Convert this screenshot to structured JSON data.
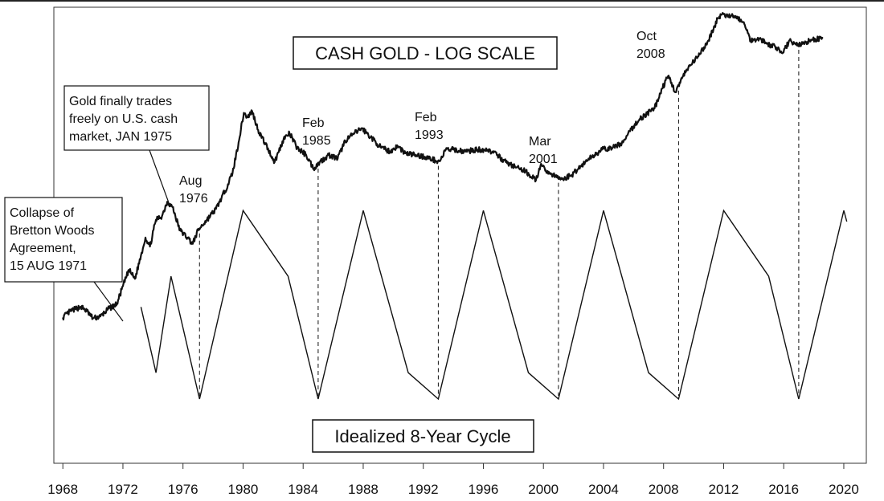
{
  "chart_data": {
    "type": "line",
    "title": "CASH GOLD - LOG SCALE",
    "cycle_label": "Idealized 8-Year Cycle",
    "x_ticks": [
      "1968",
      "1972",
      "1976",
      "1980",
      "1984",
      "1988",
      "1992",
      "1996",
      "2000",
      "2004",
      "2008",
      "2012",
      "2016",
      "2020"
    ],
    "xlim": [
      1967.4,
      2021.5
    ],
    "y_axis_printed": false,
    "series": [
      {
        "key": "gold_price",
        "note": "relative log level (unitless, chart has no y ticks)",
        "points": [
          [
            1968.0,
            0.155
          ],
          [
            1968.5,
            0.19
          ],
          [
            1969.2,
            0.215
          ],
          [
            1969.6,
            0.19
          ],
          [
            1970.0,
            0.15
          ],
          [
            1970.5,
            0.16
          ],
          [
            1971.0,
            0.2
          ],
          [
            1971.6,
            0.23
          ],
          [
            1972.0,
            0.33
          ],
          [
            1972.4,
            0.42
          ],
          [
            1972.8,
            0.37
          ],
          [
            1973.2,
            0.5
          ],
          [
            1973.5,
            0.6
          ],
          [
            1973.8,
            0.55
          ],
          [
            1974.2,
            0.7
          ],
          [
            1974.6,
            0.72
          ],
          [
            1974.95,
            0.8
          ],
          [
            1975.3,
            0.77
          ],
          [
            1975.8,
            0.64
          ],
          [
            1976.3,
            0.6
          ],
          [
            1976.65,
            0.565
          ],
          [
            1977.0,
            0.64
          ],
          [
            1977.6,
            0.7
          ],
          [
            1978.2,
            0.76
          ],
          [
            1978.8,
            0.86
          ],
          [
            1979.3,
            0.96
          ],
          [
            1979.7,
            1.13
          ],
          [
            1980.05,
            1.295
          ],
          [
            1980.3,
            1.27
          ],
          [
            1980.6,
            1.305
          ],
          [
            1981.0,
            1.2
          ],
          [
            1981.5,
            1.12
          ],
          [
            1982.1,
            1.02
          ],
          [
            1982.7,
            1.15
          ],
          [
            1983.1,
            1.18
          ],
          [
            1983.6,
            1.1
          ],
          [
            1984.2,
            1.06
          ],
          [
            1984.7,
            0.985
          ],
          [
            1985.1,
            1.02
          ],
          [
            1985.7,
            1.06
          ],
          [
            1986.3,
            1.04
          ],
          [
            1986.8,
            1.14
          ],
          [
            1987.4,
            1.18
          ],
          [
            1987.9,
            1.21
          ],
          [
            1988.5,
            1.16
          ],
          [
            1989.2,
            1.1
          ],
          [
            1989.8,
            1.08
          ],
          [
            1990.3,
            1.11
          ],
          [
            1990.8,
            1.07
          ],
          [
            1991.5,
            1.06
          ],
          [
            1992.1,
            1.05
          ],
          [
            1992.8,
            1.03
          ],
          [
            1993.1,
            1.025
          ],
          [
            1993.5,
            1.09
          ],
          [
            1994.0,
            1.09
          ],
          [
            1994.8,
            1.08
          ],
          [
            1995.6,
            1.09
          ],
          [
            1996.3,
            1.09
          ],
          [
            1996.9,
            1.06
          ],
          [
            1997.5,
            1.02
          ],
          [
            1998.2,
            0.99
          ],
          [
            1998.8,
            0.97
          ],
          [
            1999.5,
            0.92
          ],
          [
            1999.8,
            1.0
          ],
          [
            2000.4,
            0.96
          ],
          [
            2000.9,
            0.935
          ],
          [
            2001.3,
            0.925
          ],
          [
            2001.9,
            0.95
          ],
          [
            2002.5,
            1.0
          ],
          [
            2003.2,
            1.05
          ],
          [
            2003.9,
            1.09
          ],
          [
            2004.6,
            1.1
          ],
          [
            2005.3,
            1.13
          ],
          [
            2006.0,
            1.22
          ],
          [
            2006.4,
            1.26
          ],
          [
            2006.9,
            1.29
          ],
          [
            2007.4,
            1.32
          ],
          [
            2007.9,
            1.43
          ],
          [
            2008.3,
            1.5
          ],
          [
            2008.8,
            1.41
          ],
          [
            2009.3,
            1.5
          ],
          [
            2009.8,
            1.56
          ],
          [
            2010.4,
            1.62
          ],
          [
            2011.0,
            1.7
          ],
          [
            2011.6,
            1.82
          ],
          [
            2011.9,
            1.845
          ],
          [
            2012.3,
            1.83
          ],
          [
            2012.8,
            1.835
          ],
          [
            2013.3,
            1.8
          ],
          [
            2013.8,
            1.7
          ],
          [
            2014.4,
            1.71
          ],
          [
            2014.9,
            1.68
          ],
          [
            2015.6,
            1.655
          ],
          [
            2015.95,
            1.63
          ],
          [
            2016.4,
            1.7
          ],
          [
            2016.9,
            1.67
          ],
          [
            2017.5,
            1.69
          ],
          [
            2018.1,
            1.705
          ],
          [
            2018.6,
            1.71
          ]
        ]
      },
      {
        "key": "idealized_cycle",
        "note": "relative level (unitless)",
        "points": [
          [
            1973.2,
            0.42
          ],
          [
            1974.2,
            0.12
          ],
          [
            1975.2,
            0.56
          ],
          [
            1977.1,
            0.0
          ],
          [
            1980.0,
            0.86
          ],
          [
            1983.0,
            0.56
          ],
          [
            1985.0,
            0.0
          ],
          [
            1988.0,
            0.86
          ],
          [
            1991.0,
            0.12
          ],
          [
            1993.0,
            0.0
          ],
          [
            1996.0,
            0.86
          ],
          [
            1999.0,
            0.12
          ],
          [
            2001.0,
            0.0
          ],
          [
            2004.0,
            0.86
          ],
          [
            2007.0,
            0.12
          ],
          [
            2009.0,
            0.0
          ],
          [
            2012.0,
            0.86
          ],
          [
            2015.0,
            0.56
          ],
          [
            2017.0,
            0.0
          ],
          [
            2020.0,
            0.86
          ],
          [
            2020.2,
            0.81
          ]
        ]
      }
    ],
    "cycle_lows": [
      1977.1,
      1985.0,
      1993.0,
      2001.0,
      2009.0,
      2017.0
    ],
    "annotations": [
      {
        "text": "Aug\n1976",
        "target": [
          1977.1,
          0.58
        ]
      },
      {
        "text": "Feb\n1985",
        "target": [
          1985.0,
          0.985
        ]
      },
      {
        "text": "Feb\n1993",
        "target": [
          1993.0,
          1.025
        ]
      },
      {
        "text": "Mar\n2001",
        "target": [
          2001.0,
          0.925
        ]
      },
      {
        "text": "Oct\n2008",
        "target": [
          2009.0,
          1.41
        ]
      },
      {
        "text": "Gold finally trades\nfreely on U.S. cash\nmarket, JAN 1975",
        "target": [
          1975.0,
          0.8
        ]
      },
      {
        "text": "Collapse of\nBretton Woods\nAgreement,\n15 AUG 1971",
        "target": [
          1971.6,
          0.23
        ]
      }
    ]
  }
}
